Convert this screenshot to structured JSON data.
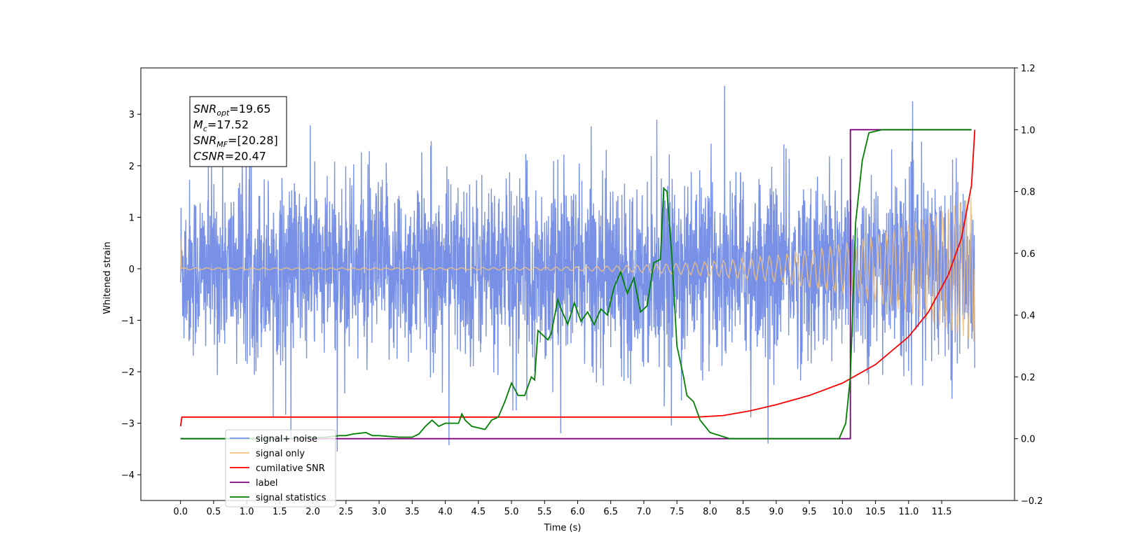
{
  "chart_data": {
    "type": "line",
    "xlabel": "Time (s)",
    "ylabel_left": "Whitened strain",
    "ylabel_right": "",
    "xlim": [
      -0.6,
      12.6
    ],
    "ylim_left": [
      -4.5,
      3.9
    ],
    "ylim_right": [
      -0.2,
      1.2
    ],
    "x_ticks": [
      "0.0",
      "0.5",
      "1.0",
      "1.5",
      "2.0",
      "2.5",
      "3.0",
      "3.5",
      "4.0",
      "4.5",
      "5.0",
      "5.5",
      "6.0",
      "6.5",
      "7.0",
      "7.5",
      "8.0",
      "8.5",
      "9.0",
      "9.5",
      "10.0",
      "10.5",
      "11.0",
      "11.5"
    ],
    "y_ticks_left": [
      "3",
      "2",
      "1",
      "0",
      "−1",
      "−2",
      "−3",
      "−4"
    ],
    "y_ticks_right": [
      "1.2",
      "1.0",
      "0.8",
      "0.6",
      "0.4",
      "0.2",
      "0.0",
      "−0.2"
    ],
    "grid": false,
    "legend_position": "bottom-left",
    "annotation": {
      "lines": [
        {
          "main": "SNR",
          "sub": "opt",
          "value": "=19.65"
        },
        {
          "main": "M",
          "sub": "c",
          "value": "=17.52"
        },
        {
          "main": "SNR",
          "sub": "MF",
          "value": "=[20.28]"
        },
        {
          "main": "CSNR",
          "sub": "",
          "value": "=20.47"
        }
      ]
    },
    "series": [
      {
        "name": "signal+ noise",
        "color": "#7891e6",
        "axis": "left",
        "kind": "noise",
        "x_range": [
          0.0,
          12.0
        ],
        "amplitude_typ": 1.2,
        "amplitude_max": 3.55
      },
      {
        "name": "signal only",
        "color": "#f4c27a",
        "axis": "left",
        "kind": "chirp",
        "x_range": [
          0.0,
          12.0
        ],
        "start_amplitude": 0.02,
        "end_amplitude": 1.5
      },
      {
        "name": "cumilative SNR",
        "color": "#ff0000",
        "axis": "right",
        "x": [
          0.0,
          0.02,
          1.0,
          3.0,
          5.0,
          7.0,
          7.8,
          8.2,
          8.6,
          9.0,
          9.5,
          10.0,
          10.5,
          11.0,
          11.3,
          11.6,
          11.8,
          11.95,
          12.0
        ],
        "y": [
          0.04,
          0.07,
          0.07,
          0.07,
          0.07,
          0.07,
          0.07,
          0.075,
          0.09,
          0.11,
          0.14,
          0.18,
          0.24,
          0.33,
          0.41,
          0.53,
          0.65,
          0.82,
          1.0
        ]
      },
      {
        "name": "label",
        "color": "#800080",
        "axis": "right",
        "x": [
          0.0,
          10.05,
          10.05,
          10.12,
          10.12,
          11.95
        ],
        "y": [
          0.0,
          0.0,
          0.0,
          0.0,
          1.0,
          1.0
        ]
      },
      {
        "name": "signal statistics",
        "color": "#008000",
        "axis": "right",
        "x": [
          0.0,
          1.5,
          2.2,
          2.4,
          2.5,
          2.6,
          2.8,
          2.9,
          3.0,
          3.3,
          3.5,
          3.6,
          3.7,
          3.8,
          3.9,
          4.0,
          4.2,
          4.25,
          4.3,
          4.4,
          4.6,
          4.7,
          4.8,
          4.9,
          5.0,
          5.1,
          5.2,
          5.3,
          5.35,
          5.4,
          5.5,
          5.55,
          5.6,
          5.7,
          5.75,
          5.85,
          5.95,
          6.05,
          6.15,
          6.25,
          6.35,
          6.45,
          6.55,
          6.65,
          6.75,
          6.85,
          6.95,
          7.05,
          7.15,
          7.25,
          7.3,
          7.35,
          7.42,
          7.5,
          7.6,
          7.65,
          7.75,
          7.85,
          8.0,
          8.3,
          9.0,
          9.5,
          9.8,
          9.95,
          10.05,
          10.12,
          10.2,
          10.3,
          10.4,
          10.6,
          11.95
        ],
        "y": [
          0.0,
          0.0,
          0.005,
          0.01,
          0.01,
          0.015,
          0.02,
          0.01,
          0.01,
          0.005,
          0.005,
          0.015,
          0.04,
          0.06,
          0.04,
          0.05,
          0.05,
          0.08,
          0.06,
          0.04,
          0.03,
          0.06,
          0.07,
          0.12,
          0.18,
          0.14,
          0.14,
          0.2,
          0.19,
          0.35,
          0.33,
          0.32,
          0.34,
          0.45,
          0.42,
          0.37,
          0.44,
          0.38,
          0.41,
          0.37,
          0.42,
          0.4,
          0.49,
          0.54,
          0.47,
          0.52,
          0.41,
          0.43,
          0.57,
          0.58,
          0.81,
          0.8,
          0.6,
          0.3,
          0.2,
          0.14,
          0.12,
          0.06,
          0.02,
          0.0,
          0.0,
          0.0,
          0.0,
          0.0,
          0.05,
          0.2,
          0.7,
          0.9,
          0.99,
          1.0,
          1.0
        ]
      }
    ]
  }
}
